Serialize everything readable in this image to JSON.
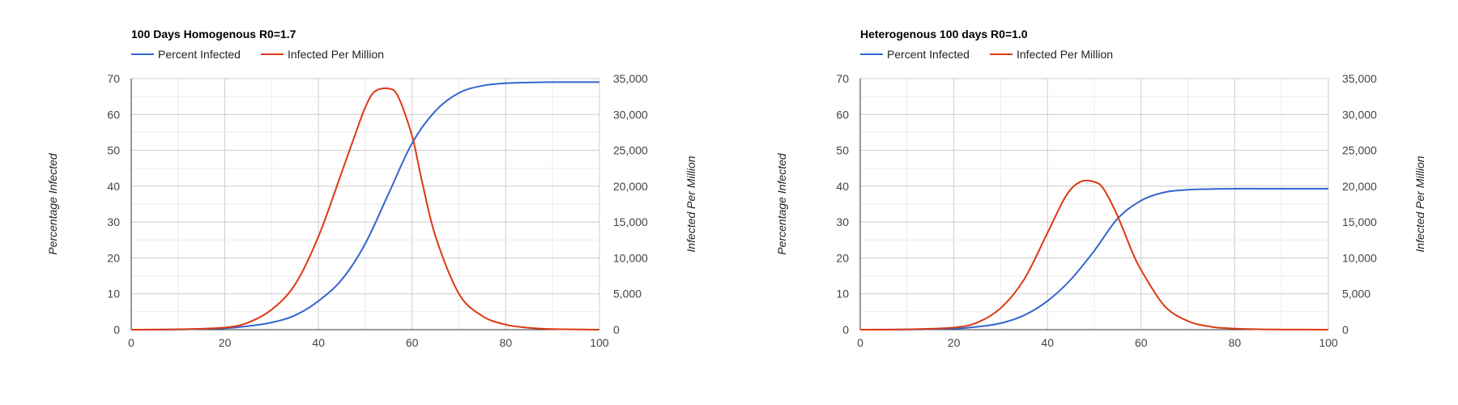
{
  "colors": {
    "percent": "#3366cc",
    "per_million": "#dc3912"
  },
  "chart_data": [
    {
      "type": "line",
      "title": "100 Days Homogenous R0=1.7",
      "xlabel": "",
      "ylabel": "Percentage Infected",
      "y2label": "Infected Per Million",
      "xlim": [
        0,
        100
      ],
      "ylim": [
        0,
        70
      ],
      "y2lim": [
        0,
        35000
      ],
      "xticks": [
        0,
        20,
        40,
        60,
        80,
        100
      ],
      "yticks": [
        0,
        10,
        20,
        30,
        40,
        50,
        60,
        70
      ],
      "y2ticks": [
        "0",
        "5,000",
        "10,000",
        "15,000",
        "20,000",
        "25,000",
        "30,000",
        "35,000"
      ],
      "legend_position": "top-left",
      "grid": true,
      "series": [
        {
          "name": "Percent Infected",
          "axis": "left",
          "x": [
            0,
            10,
            20,
            25,
            30,
            35,
            40,
            45,
            50,
            55,
            60,
            65,
            70,
            75,
            80,
            85,
            90,
            100
          ],
          "values": [
            0,
            0.05,
            0.4,
            1,
            2,
            4,
            8,
            14,
            24,
            38,
            52,
            61,
            66,
            68,
            68.7,
            68.9,
            69,
            69
          ]
        },
        {
          "name": "Infected Per Million",
          "axis": "right",
          "x": [
            0,
            10,
            20,
            25,
            30,
            35,
            40,
            45,
            48,
            50,
            52,
            55,
            57,
            60,
            62,
            65,
            70,
            75,
            80,
            85,
            90,
            100
          ],
          "values": [
            0,
            50,
            300,
            1000,
            2800,
            6300,
            13000,
            22000,
            27500,
            31000,
            33200,
            33600,
            32500,
            27000,
            21000,
            13000,
            5000,
            1900,
            700,
            250,
            80,
            0
          ]
        }
      ]
    },
    {
      "type": "line",
      "title": "Heterogenous 100 days R0=1.0",
      "xlabel": "",
      "ylabel": "Percentage Infected",
      "y2label": "Infected Per Million",
      "xlim": [
        0,
        100
      ],
      "ylim": [
        0,
        70
      ],
      "y2lim": [
        0,
        35000
      ],
      "xticks": [
        0,
        20,
        40,
        60,
        80,
        100
      ],
      "yticks": [
        0,
        10,
        20,
        30,
        40,
        50,
        60,
        70
      ],
      "y2ticks": [
        "0",
        "5,000",
        "10,000",
        "15,000",
        "20,000",
        "25,000",
        "30,000",
        "35,000"
      ],
      "legend_position": "top-left",
      "grid": true,
      "series": [
        {
          "name": "Percent Infected",
          "axis": "left",
          "x": [
            0,
            10,
            20,
            25,
            30,
            35,
            40,
            45,
            50,
            55,
            60,
            65,
            70,
            75,
            80,
            85,
            90,
            100
          ],
          "values": [
            0,
            0.05,
            0.3,
            0.8,
            1.8,
            4,
            8,
            14,
            22,
            31,
            36,
            38.3,
            39,
            39.2,
            39.3,
            39.3,
            39.3,
            39.3
          ]
        },
        {
          "name": "Infected Per Million",
          "axis": "right",
          "x": [
            0,
            10,
            20,
            25,
            30,
            35,
            40,
            44,
            47,
            50,
            52,
            55,
            58,
            60,
            65,
            70,
            75,
            80,
            85,
            90,
            100
          ],
          "values": [
            0,
            40,
            300,
            1000,
            3000,
            7000,
            13500,
            18700,
            20600,
            20600,
            19600,
            15800,
            11000,
            8300,
            3300,
            1200,
            400,
            150,
            50,
            20,
            0
          ]
        }
      ]
    }
  ]
}
